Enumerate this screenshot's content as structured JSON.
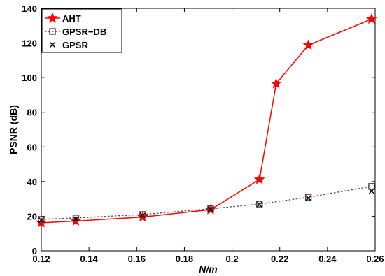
{
  "chart_data": {
    "type": "line",
    "title": "",
    "xlabel": "N/m",
    "ylabel": "PSNR (dB)",
    "xlim": [
      0.12,
      0.26
    ],
    "ylim": [
      0,
      140
    ],
    "xticks": [
      "0.12",
      "0.14",
      "0.16",
      "0.18",
      "0.2",
      "0.22",
      "0.24",
      "0.26"
    ],
    "yticks": [
      "0",
      "20",
      "40",
      "60",
      "80",
      "100",
      "120",
      "140"
    ],
    "grid": false,
    "legend_position": "top-left",
    "series": [
      {
        "name": "AHT",
        "color": "#ff0000",
        "marker": "star",
        "line": "solid",
        "x": [
          0.12,
          0.1345,
          0.1625,
          0.191,
          0.2115,
          0.2185,
          0.232,
          0.2585
        ],
        "y": [
          16.2,
          17.2,
          19.5,
          23.8,
          41.2,
          96.5,
          118.8,
          133.8
        ]
      },
      {
        "name": "GPSR−DB",
        "color": "#5a3a3a",
        "marker": "square",
        "line": "dotted",
        "x": [
          0.12,
          0.1345,
          0.1625,
          0.191,
          0.2115,
          0.232,
          0.2585
        ],
        "y": [
          18.2,
          19.0,
          21.0,
          24.3,
          27.0,
          31.0,
          37.2
        ]
      },
      {
        "name": "GPSR",
        "color": "#000000",
        "marker": "x",
        "line": "none",
        "x": [
          0.12,
          0.1345,
          0.1625,
          0.191,
          0.2115,
          0.232,
          0.2585
        ],
        "y": [
          17.8,
          18.4,
          20.5,
          24.0,
          26.8,
          30.5,
          34.5
        ]
      }
    ]
  }
}
